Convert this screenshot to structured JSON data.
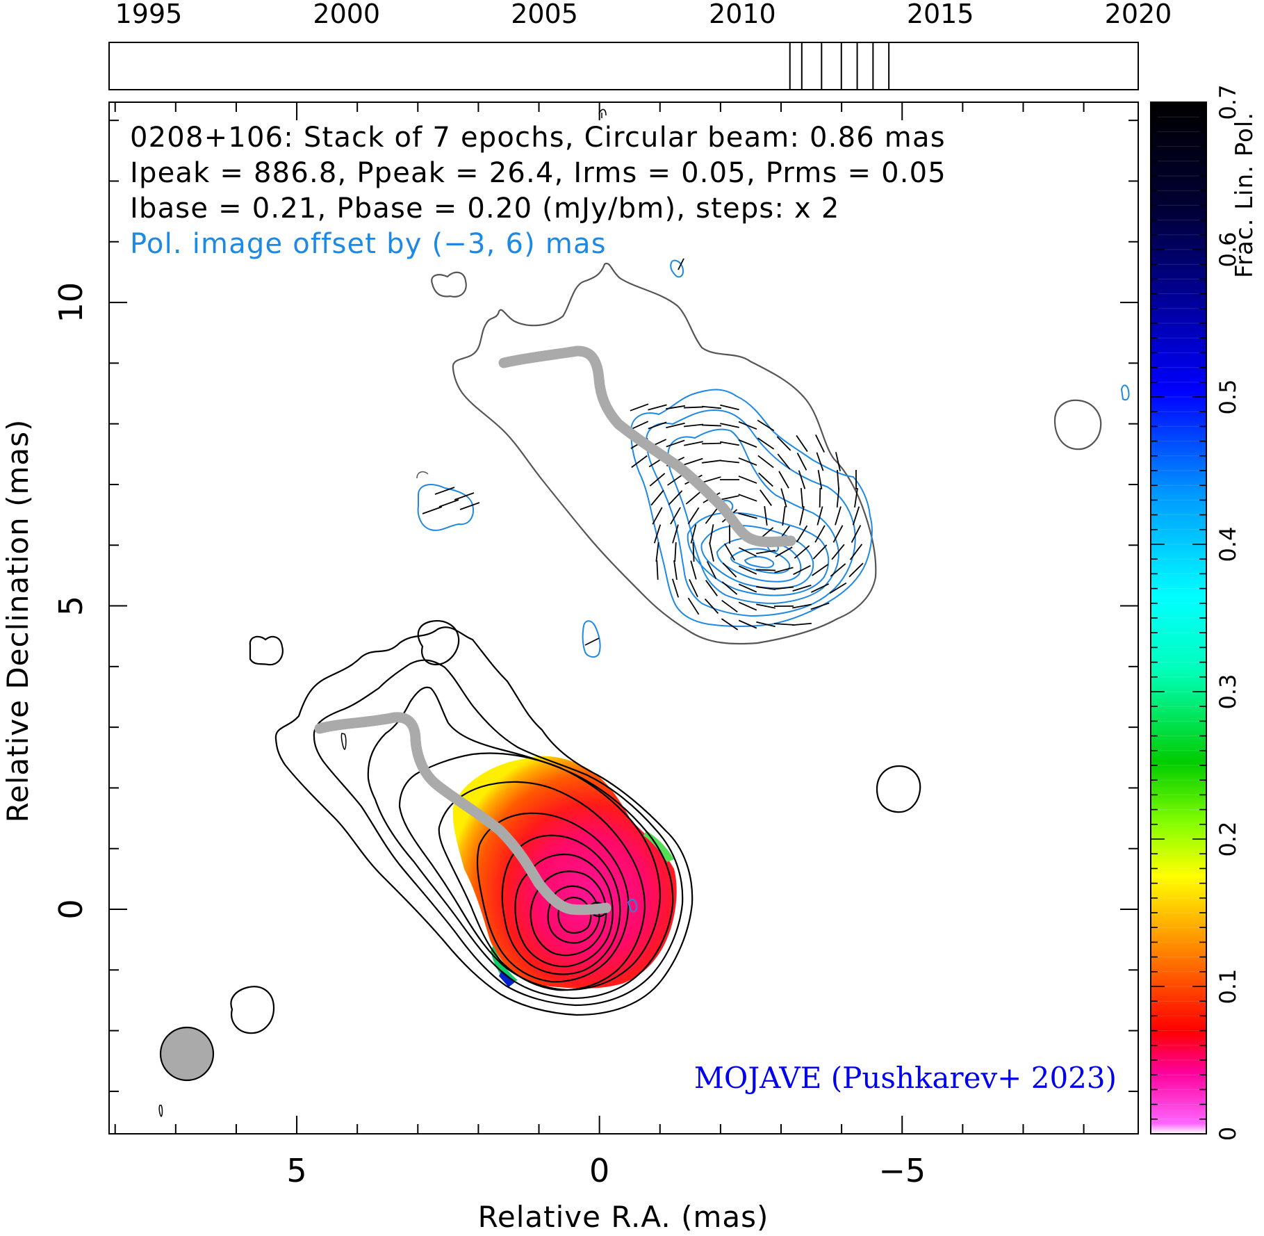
{
  "chart_data": {
    "type": "contour",
    "source": "0208+106",
    "info_lines": [
      "0208+106: Stack of 7 epochs, Circular beam: 0.86 mas",
      "Ipeak = 886.8, Ppeak = 26.4, Irms = 0.05, Prms = 0.05",
      "Ibase = 0.21, Pbase = 0.20 (mJy/bm), steps: x 2"
    ],
    "offset_note": "Pol. image offset by (−3, 6) mas",
    "credit": "MOJAVE (Pushkarev+ 2023)",
    "xlabel": "Relative R.A. (mas)",
    "ylabel": "Relative Declination (mas)",
    "xlim": [
      8.1,
      -8.9
    ],
    "ylim": [
      -3.7,
      13.3
    ],
    "x_ticks": [
      5,
      0,
      -5
    ],
    "x_tick_labels": [
      "5",
      "0",
      "−5"
    ],
    "y_ticks": [
      0,
      5,
      10
    ],
    "y_tick_labels": [
      "0",
      "5",
      "10"
    ],
    "beam_diameter_mas": 0.86,
    "epoch_axis": {
      "range": [
        1994,
        2020
      ],
      "tick_years": [
        "1995",
        "2000",
        "2005",
        "2010",
        "2015",
        "2020"
      ],
      "epochs": [
        2011.2,
        2011.5,
        2012.0,
        2012.5,
        2012.9,
        2013.3,
        2013.7
      ]
    },
    "colorbar": {
      "label": "Frac. Lin. Pol.",
      "range": [
        0,
        0.7
      ],
      "tick_values": [
        0,
        0.1,
        0.2,
        0.3,
        0.4,
        0.5,
        0.6,
        0.7
      ],
      "tick_labels": [
        "0",
        "0.1",
        "0.2",
        "0.3",
        "0.4",
        "0.5",
        "0.6",
        "0.7"
      ]
    },
    "colors": {
      "stokes_i_contour": "#000000",
      "pol_contour": "#1e88e5",
      "ridgeline": "#aaaaaa",
      "info_text": "#000000",
      "offset_text": "#1e88e5",
      "credit_text": "#0000ee"
    }
  }
}
